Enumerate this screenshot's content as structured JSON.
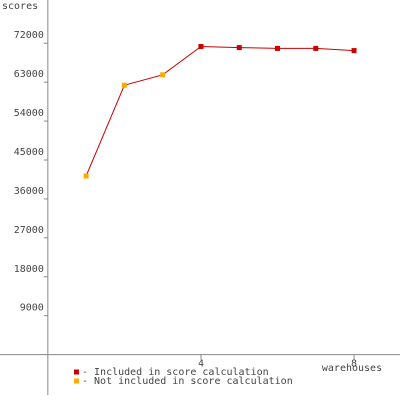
{
  "chart_data": {
    "type": "line",
    "y_label": "scores",
    "x_label": "warehouses",
    "x": [
      1,
      2,
      3,
      4,
      5,
      6,
      7,
      8
    ],
    "values": [
      41300,
      62300,
      64700,
      71250,
      71000,
      70800,
      70800,
      70300
    ],
    "included": [
      false,
      false,
      false,
      true,
      true,
      true,
      true,
      true
    ],
    "line_color": "#cc0000",
    "legend": [
      {
        "label": "- Included in score calculation",
        "color": "#cc0000"
      },
      {
        "label": "- Not included in score calculation",
        "color": "#ffaa00"
      }
    ],
    "xlim": [
      -1.25,
      9.2
    ],
    "xticks": [
      4,
      8
    ],
    "ylim": [
      -10500,
      82000
    ],
    "yticks": [
      9000,
      18000,
      27000,
      36000,
      45000,
      54000,
      63000,
      72000
    ]
  }
}
